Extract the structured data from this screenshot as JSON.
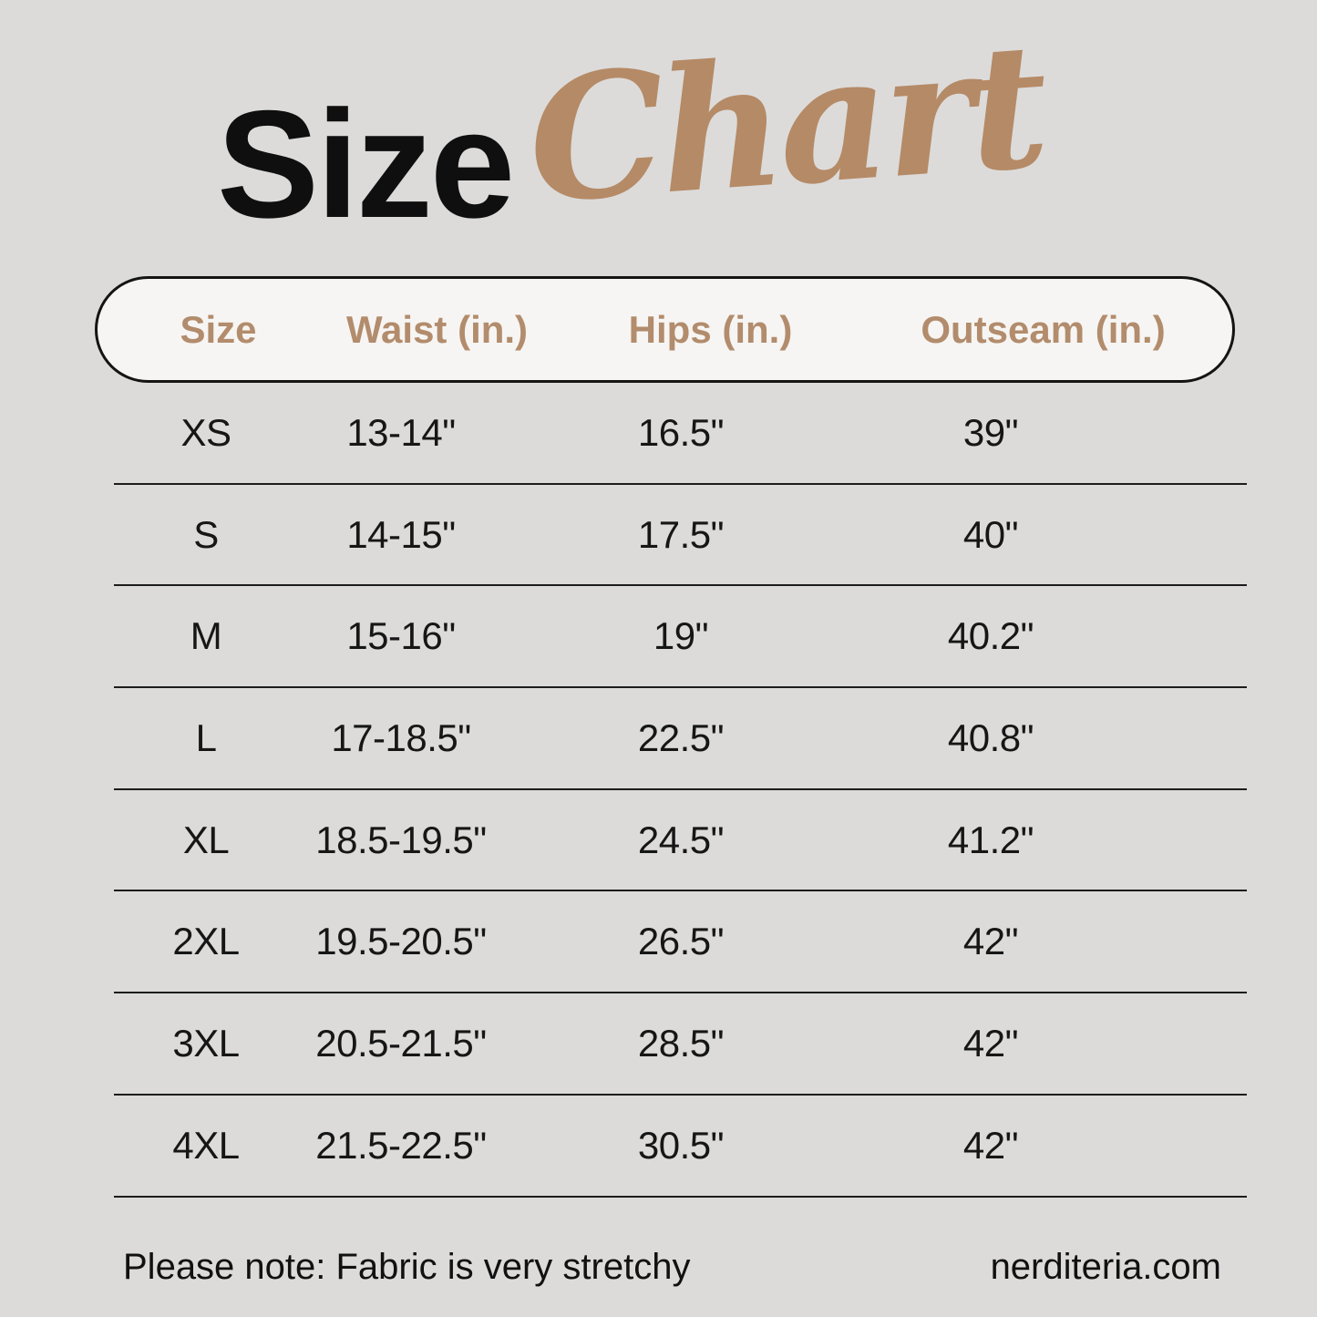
{
  "title": {
    "main": "Size",
    "script": "Chart"
  },
  "chart_data": {
    "type": "table",
    "title": "Size Chart",
    "columns": [
      "Size",
      "Waist (in.)",
      "Hips (in.)",
      "Outseam (in.)"
    ],
    "rows": [
      [
        "XS",
        "13-14\"",
        "16.5\"",
        "39\""
      ],
      [
        "S",
        "14-15\"",
        "17.5\"",
        "40\""
      ],
      [
        "M",
        "15-16\"",
        "19\"",
        "40.2\""
      ],
      [
        "L",
        "17-18.5\"",
        "22.5\"",
        "40.8\""
      ],
      [
        "XL",
        "18.5-19.5\"",
        "24.5\"",
        "41.2\""
      ],
      [
        "2XL",
        "19.5-20.5\"",
        "26.5\"",
        "42\""
      ],
      [
        "3XL",
        "20.5-21.5\"",
        "28.5\"",
        "42\""
      ],
      [
        "4XL",
        "21.5-22.5\"",
        "30.5\"",
        "42\""
      ]
    ],
    "note": "Please note: Fabric is very stretchy",
    "source": "nerditeria.com"
  },
  "footer": {
    "note": "Please note: Fabric is very stretchy",
    "website": "nerditeria.com"
  },
  "colors": {
    "background": "#dcdbda",
    "accent_tan": "#b58a66",
    "header_text": "#b28c6c",
    "pill_fill": "#f6f5f3",
    "pill_border": "#141414",
    "body_text": "#161616",
    "divider": "#1c1c1c"
  }
}
